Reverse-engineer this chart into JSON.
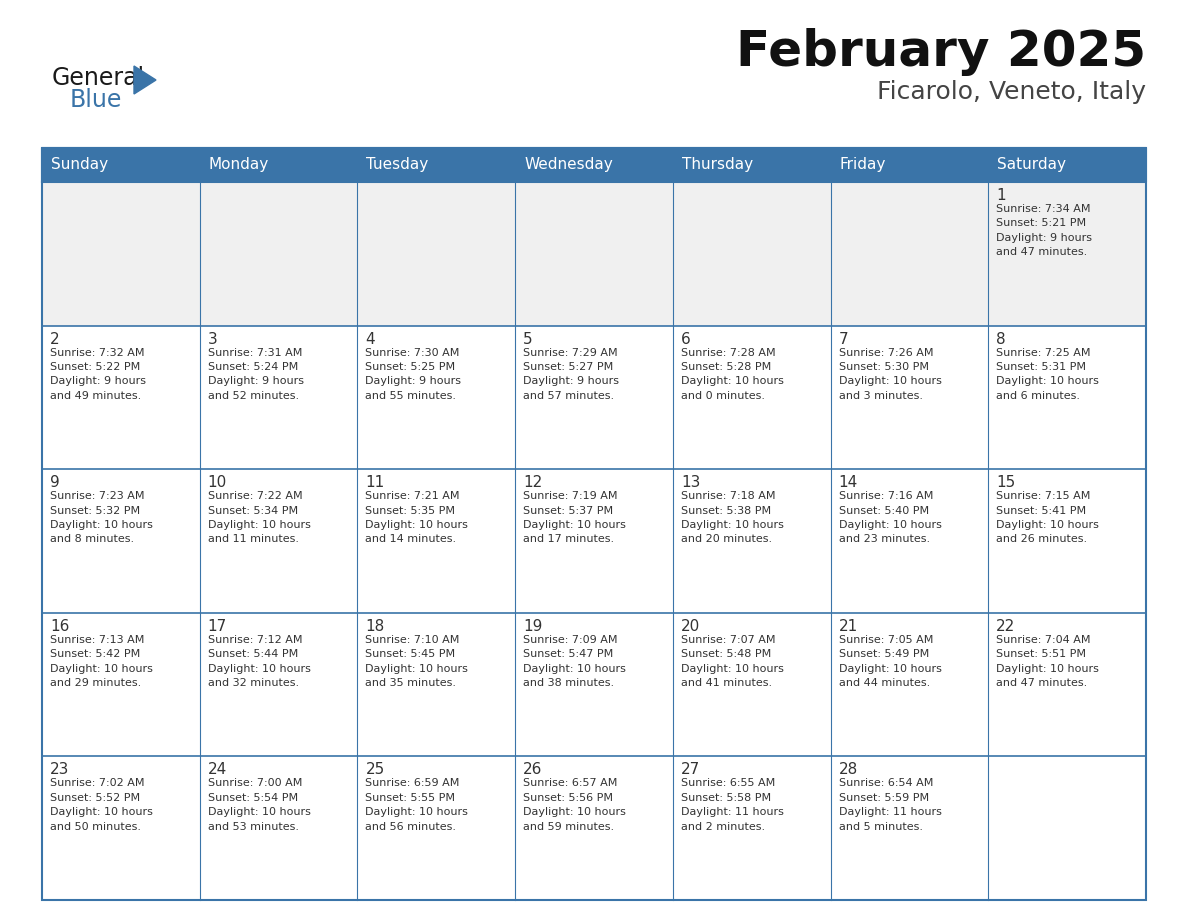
{
  "title": "February 2025",
  "subtitle": "Ficarolo, Veneto, Italy",
  "header_bg": "#3A74A8",
  "header_text": "#FFFFFF",
  "cell_bg": "#FFFFFF",
  "cell_bg_first": "#F0F0F0",
  "border_color": "#3A74A8",
  "text_color": "#333333",
  "day_headers": [
    "Sunday",
    "Monday",
    "Tuesday",
    "Wednesday",
    "Thursday",
    "Friday",
    "Saturday"
  ],
  "weeks": [
    [
      {
        "day": null,
        "info": null
      },
      {
        "day": null,
        "info": null
      },
      {
        "day": null,
        "info": null
      },
      {
        "day": null,
        "info": null
      },
      {
        "day": null,
        "info": null
      },
      {
        "day": null,
        "info": null
      },
      {
        "day": 1,
        "info": "Sunrise: 7:34 AM\nSunset: 5:21 PM\nDaylight: 9 hours\nand 47 minutes."
      }
    ],
    [
      {
        "day": 2,
        "info": "Sunrise: 7:32 AM\nSunset: 5:22 PM\nDaylight: 9 hours\nand 49 minutes."
      },
      {
        "day": 3,
        "info": "Sunrise: 7:31 AM\nSunset: 5:24 PM\nDaylight: 9 hours\nand 52 minutes."
      },
      {
        "day": 4,
        "info": "Sunrise: 7:30 AM\nSunset: 5:25 PM\nDaylight: 9 hours\nand 55 minutes."
      },
      {
        "day": 5,
        "info": "Sunrise: 7:29 AM\nSunset: 5:27 PM\nDaylight: 9 hours\nand 57 minutes."
      },
      {
        "day": 6,
        "info": "Sunrise: 7:28 AM\nSunset: 5:28 PM\nDaylight: 10 hours\nand 0 minutes."
      },
      {
        "day": 7,
        "info": "Sunrise: 7:26 AM\nSunset: 5:30 PM\nDaylight: 10 hours\nand 3 minutes."
      },
      {
        "day": 8,
        "info": "Sunrise: 7:25 AM\nSunset: 5:31 PM\nDaylight: 10 hours\nand 6 minutes."
      }
    ],
    [
      {
        "day": 9,
        "info": "Sunrise: 7:23 AM\nSunset: 5:32 PM\nDaylight: 10 hours\nand 8 minutes."
      },
      {
        "day": 10,
        "info": "Sunrise: 7:22 AM\nSunset: 5:34 PM\nDaylight: 10 hours\nand 11 minutes."
      },
      {
        "day": 11,
        "info": "Sunrise: 7:21 AM\nSunset: 5:35 PM\nDaylight: 10 hours\nand 14 minutes."
      },
      {
        "day": 12,
        "info": "Sunrise: 7:19 AM\nSunset: 5:37 PM\nDaylight: 10 hours\nand 17 minutes."
      },
      {
        "day": 13,
        "info": "Sunrise: 7:18 AM\nSunset: 5:38 PM\nDaylight: 10 hours\nand 20 minutes."
      },
      {
        "day": 14,
        "info": "Sunrise: 7:16 AM\nSunset: 5:40 PM\nDaylight: 10 hours\nand 23 minutes."
      },
      {
        "day": 15,
        "info": "Sunrise: 7:15 AM\nSunset: 5:41 PM\nDaylight: 10 hours\nand 26 minutes."
      }
    ],
    [
      {
        "day": 16,
        "info": "Sunrise: 7:13 AM\nSunset: 5:42 PM\nDaylight: 10 hours\nand 29 minutes."
      },
      {
        "day": 17,
        "info": "Sunrise: 7:12 AM\nSunset: 5:44 PM\nDaylight: 10 hours\nand 32 minutes."
      },
      {
        "day": 18,
        "info": "Sunrise: 7:10 AM\nSunset: 5:45 PM\nDaylight: 10 hours\nand 35 minutes."
      },
      {
        "day": 19,
        "info": "Sunrise: 7:09 AM\nSunset: 5:47 PM\nDaylight: 10 hours\nand 38 minutes."
      },
      {
        "day": 20,
        "info": "Sunrise: 7:07 AM\nSunset: 5:48 PM\nDaylight: 10 hours\nand 41 minutes."
      },
      {
        "day": 21,
        "info": "Sunrise: 7:05 AM\nSunset: 5:49 PM\nDaylight: 10 hours\nand 44 minutes."
      },
      {
        "day": 22,
        "info": "Sunrise: 7:04 AM\nSunset: 5:51 PM\nDaylight: 10 hours\nand 47 minutes."
      }
    ],
    [
      {
        "day": 23,
        "info": "Sunrise: 7:02 AM\nSunset: 5:52 PM\nDaylight: 10 hours\nand 50 minutes."
      },
      {
        "day": 24,
        "info": "Sunrise: 7:00 AM\nSunset: 5:54 PM\nDaylight: 10 hours\nand 53 minutes."
      },
      {
        "day": 25,
        "info": "Sunrise: 6:59 AM\nSunset: 5:55 PM\nDaylight: 10 hours\nand 56 minutes."
      },
      {
        "day": 26,
        "info": "Sunrise: 6:57 AM\nSunset: 5:56 PM\nDaylight: 10 hours\nand 59 minutes."
      },
      {
        "day": 27,
        "info": "Sunrise: 6:55 AM\nSunset: 5:58 PM\nDaylight: 11 hours\nand 2 minutes."
      },
      {
        "day": 28,
        "info": "Sunrise: 6:54 AM\nSunset: 5:59 PM\nDaylight: 11 hours\nand 5 minutes."
      },
      {
        "day": null,
        "info": null
      }
    ]
  ],
  "logo_general_color": "#1a1a1a",
  "logo_blue_color": "#3A74A8",
  "logo_triangle_color": "#3A74A8",
  "title_fontsize": 36,
  "subtitle_fontsize": 18,
  "header_fontsize": 11,
  "day_num_fontsize": 11,
  "info_fontsize": 8
}
